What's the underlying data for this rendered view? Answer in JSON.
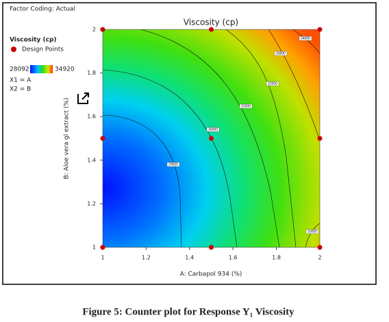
{
  "chart_data": {
    "type": "contour",
    "title": "Viscosity  (cp)",
    "factor_coding": "Factor Coding: Actual",
    "legend_title": "Viscosity  (cp)",
    "factor_x": "X1 = A",
    "factor_y": "X2 = B",
    "x_label": "A: Carbapol 934 (%)",
    "y_label": "B: Aloe vera gl extract (%)",
    "caption": "Figure 5: Counter plot for Response Y₁ Viscosity",
    "color_scale": {
      "min": 28092,
      "max": 34920,
      "min_color": "#2030d0",
      "max_color": "#d02010"
    },
    "contour_levels": [
      29000,
      30000,
      31000,
      32000,
      33000,
      34000,
      33000
    ],
    "series": [
      {
        "name": "Design Points",
        "color": "#cc0000",
        "x": [
          1,
          1,
          1,
          1.5,
          1.5,
          1.5,
          2,
          2,
          2
        ],
        "values": [
          1,
          1.5,
          2,
          1,
          1.5,
          2,
          1,
          1.5,
          2
        ]
      }
    ],
    "xlim": [
      1,
      2
    ],
    "ylim": [
      1,
      2
    ],
    "xticks": [
      1,
      1.2,
      1.4,
      1.6,
      1.8,
      2
    ],
    "yticks": [
      1,
      1.2,
      1.4,
      1.6,
      1.8,
      2
    ]
  }
}
